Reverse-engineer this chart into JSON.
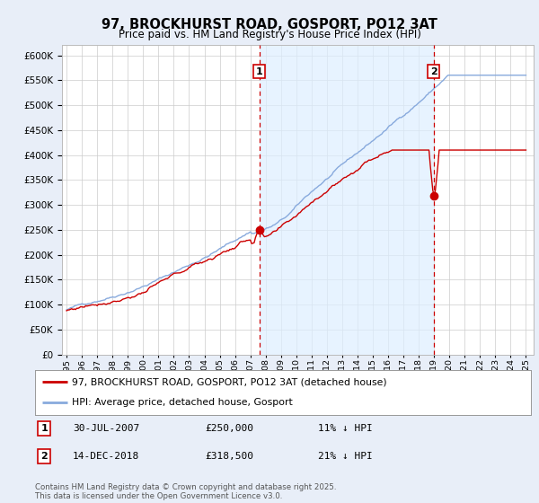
{
  "title": "97, BROCKHURST ROAD, GOSPORT, PO12 3AT",
  "subtitle": "Price paid vs. HM Land Registry's House Price Index (HPI)",
  "ylabel_ticks": [
    0,
    50000,
    100000,
    150000,
    200000,
    250000,
    300000,
    350000,
    400000,
    450000,
    500000,
    550000,
    600000
  ],
  "ylim": [
    0,
    620000
  ],
  "xlim_start": 1994.7,
  "xlim_end": 2025.5,
  "sale1_x": 2007.58,
  "sale1_y": 250000,
  "sale1_label": "1",
  "sale1_date": "30-JUL-2007",
  "sale1_price": "£250,000",
  "sale1_hpi": "11% ↓ HPI",
  "sale2_x": 2018.96,
  "sale2_y": 318500,
  "sale2_label": "2",
  "sale2_date": "14-DEC-2018",
  "sale2_price": "£318,500",
  "sale2_hpi": "21% ↓ HPI",
  "red_line_color": "#cc0000",
  "blue_line_color": "#88aadd",
  "shade_color": "#ddeeff",
  "background_color": "#e8eef8",
  "plot_bg_color": "#ffffff",
  "legend_line1": "97, BROCKHURST ROAD, GOSPORT, PO12 3AT (detached house)",
  "legend_line2": "HPI: Average price, detached house, Gosport",
  "footnote": "Contains HM Land Registry data © Crown copyright and database right 2025.\nThis data is licensed under the Open Government Licence v3.0.",
  "x_ticks": [
    1995,
    1996,
    1997,
    1998,
    1999,
    2000,
    2001,
    2002,
    2003,
    2004,
    2005,
    2006,
    2007,
    2008,
    2009,
    2010,
    2011,
    2012,
    2013,
    2014,
    2015,
    2016,
    2017,
    2018,
    2019,
    2020,
    2021,
    2022,
    2023,
    2024,
    2025
  ]
}
